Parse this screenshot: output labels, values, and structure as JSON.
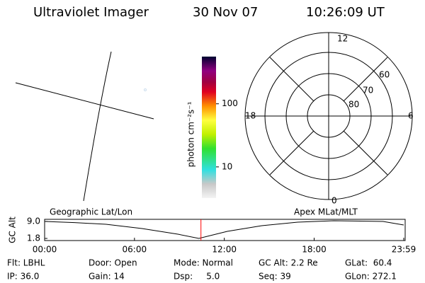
{
  "header": {
    "title": "Ultraviolet Imager",
    "date": "30 Nov 07",
    "time": "10:26:09 UT"
  },
  "colorbar": {
    "label": "photon cm⁻²s⁻¹",
    "ylim": [
      3.2,
      560
    ],
    "yticks": [
      10,
      100
    ],
    "log": true
  },
  "polar": {
    "mlt_labels": [
      "12",
      "6",
      "0",
      "18"
    ],
    "lat_labels": [
      "60",
      "70",
      "80"
    ]
  },
  "chart_data": {
    "type": "line",
    "ylabel": "GC Alt",
    "annotations": [
      "Geographic Lat/Lon",
      "Apex MLat/MLT"
    ],
    "x": [
      0,
      2,
      4.1,
      6.5,
      8.9,
      10.3,
      12.2,
      14.5,
      16.9,
      19.3,
      22.6,
      23.98
    ],
    "series": [
      {
        "name": "GC Alt",
        "color": "#000000",
        "values": [
          9.0,
          8.5,
          7.8,
          6.0,
          3.6,
          1.8,
          4.8,
          7.2,
          8.7,
          9.3,
          9.0,
          7.5
        ]
      }
    ],
    "marker": {
      "value": 10.44,
      "color": "#ff0000"
    },
    "xlim": [
      0,
      23.983
    ],
    "ylim": [
      0.9,
      9.9
    ],
    "xticks": [
      {
        "value": 0,
        "label": "00:00"
      },
      {
        "value": 6,
        "label": "06:00"
      },
      {
        "value": 12,
        "label": "12:00"
      },
      {
        "value": 18,
        "label": "18:00"
      },
      {
        "value": 23.983,
        "label": "23:59"
      }
    ],
    "yticks": [
      1.8,
      {
        "value": 9,
        "label": "9.0"
      }
    ]
  },
  "footer": {
    "rows": [
      [
        "Flt: LBHL",
        "Door: Open",
        "Mode: Normal",
        "GC Alt: 2.2 Re",
        "GLat:  60.4"
      ],
      [
        "IP: 36.0",
        "Gain: 14",
        "Dsp:     5.0",
        "Seq: 39",
        "GLon: 272.1"
      ]
    ]
  }
}
